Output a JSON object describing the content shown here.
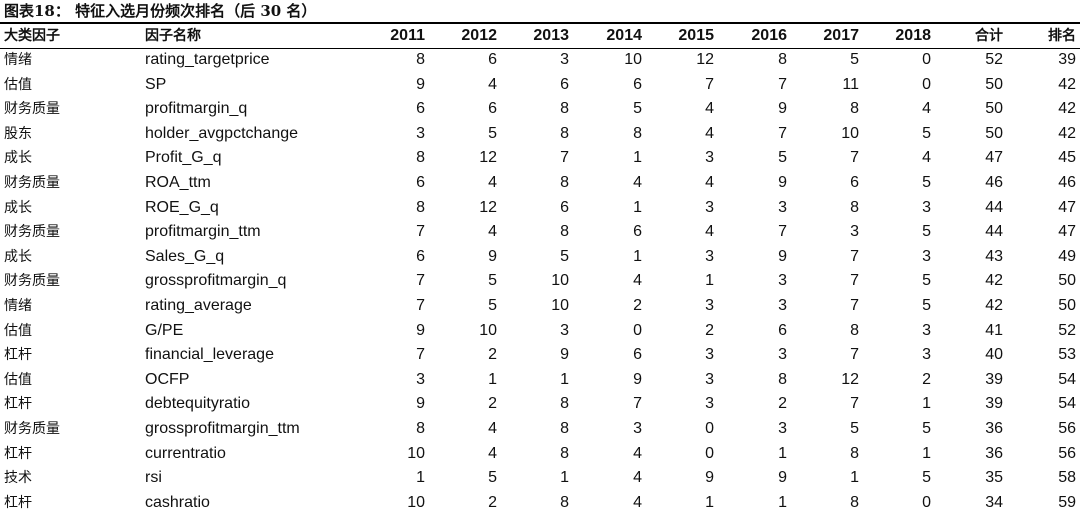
{
  "title": "图表18： 特征入选月份频次排名（后 30 名）",
  "headers": {
    "category": "大类因子",
    "name": "因子名称",
    "years": [
      "2011",
      "2012",
      "2013",
      "2014",
      "2015",
      "2016",
      "2017",
      "2018"
    ],
    "total": "合计",
    "rank": "排名"
  },
  "rows": [
    {
      "category": "情绪",
      "name": "rating_targetprice",
      "values": [
        "8",
        "6",
        "3",
        "10",
        "12",
        "8",
        "5",
        "0"
      ],
      "total": "52",
      "rank": "39"
    },
    {
      "category": "估值",
      "name": "SP",
      "values": [
        "9",
        "4",
        "6",
        "6",
        "7",
        "7",
        "11",
        "0"
      ],
      "total": "50",
      "rank": "42"
    },
    {
      "category": "财务质量",
      "name": "profitmargin_q",
      "values": [
        "6",
        "6",
        "8",
        "5",
        "4",
        "9",
        "8",
        "4"
      ],
      "total": "50",
      "rank": "42"
    },
    {
      "category": "股东",
      "name": "holder_avgpctchange",
      "values": [
        "3",
        "5",
        "8",
        "8",
        "4",
        "7",
        "10",
        "5"
      ],
      "total": "50",
      "rank": "42"
    },
    {
      "category": "成长",
      "name": "Profit_G_q",
      "values": [
        "8",
        "12",
        "7",
        "1",
        "3",
        "5",
        "7",
        "4"
      ],
      "total": "47",
      "rank": "45"
    },
    {
      "category": "财务质量",
      "name": "ROA_ttm",
      "values": [
        "6",
        "4",
        "8",
        "4",
        "4",
        "9",
        "6",
        "5"
      ],
      "total": "46",
      "rank": "46"
    },
    {
      "category": "成长",
      "name": "ROE_G_q",
      "values": [
        "8",
        "12",
        "6",
        "1",
        "3",
        "3",
        "8",
        "3"
      ],
      "total": "44",
      "rank": "47"
    },
    {
      "category": "财务质量",
      "name": "profitmargin_ttm",
      "values": [
        "7",
        "4",
        "8",
        "6",
        "4",
        "7",
        "3",
        "5"
      ],
      "total": "44",
      "rank": "47"
    },
    {
      "category": "成长",
      "name": "Sales_G_q",
      "values": [
        "6",
        "9",
        "5",
        "1",
        "3",
        "9",
        "7",
        "3"
      ],
      "total": "43",
      "rank": "49"
    },
    {
      "category": "财务质量",
      "name": "grossprofitmargin_q",
      "values": [
        "7",
        "5",
        "10",
        "4",
        "1",
        "3",
        "7",
        "5"
      ],
      "total": "42",
      "rank": "50"
    },
    {
      "category": "情绪",
      "name": "rating_average",
      "values": [
        "7",
        "5",
        "10",
        "2",
        "3",
        "3",
        "7",
        "5"
      ],
      "total": "42",
      "rank": "50"
    },
    {
      "category": "估值",
      "name": "G/PE",
      "values": [
        "9",
        "10",
        "3",
        "0",
        "2",
        "6",
        "8",
        "3"
      ],
      "total": "41",
      "rank": "52"
    },
    {
      "category": "杠杆",
      "name": "financial_leverage",
      "values": [
        "7",
        "2",
        "9",
        "6",
        "3",
        "3",
        "7",
        "3"
      ],
      "total": "40",
      "rank": "53"
    },
    {
      "category": "估值",
      "name": "OCFP",
      "values": [
        "3",
        "1",
        "1",
        "9",
        "3",
        "8",
        "12",
        "2"
      ],
      "total": "39",
      "rank": "54"
    },
    {
      "category": "杠杆",
      "name": "debtequityratio",
      "values": [
        "9",
        "2",
        "8",
        "7",
        "3",
        "2",
        "7",
        "1"
      ],
      "total": "39",
      "rank": "54"
    },
    {
      "category": "财务质量",
      "name": "grossprofitmargin_ttm",
      "values": [
        "8",
        "4",
        "8",
        "3",
        "0",
        "3",
        "5",
        "5"
      ],
      "total": "36",
      "rank": "56"
    },
    {
      "category": "杠杆",
      "name": "currentratio",
      "values": [
        "10",
        "4",
        "8",
        "4",
        "0",
        "1",
        "8",
        "1"
      ],
      "total": "36",
      "rank": "56"
    },
    {
      "category": "技术",
      "name": "rsi",
      "values": [
        "1",
        "5",
        "1",
        "4",
        "9",
        "9",
        "1",
        "5"
      ],
      "total": "35",
      "rank": "58"
    },
    {
      "category": "杠杆",
      "name": "cashratio",
      "values": [
        "10",
        "2",
        "8",
        "4",
        "1",
        "1",
        "8",
        "0"
      ],
      "total": "34",
      "rank": "59"
    }
  ]
}
